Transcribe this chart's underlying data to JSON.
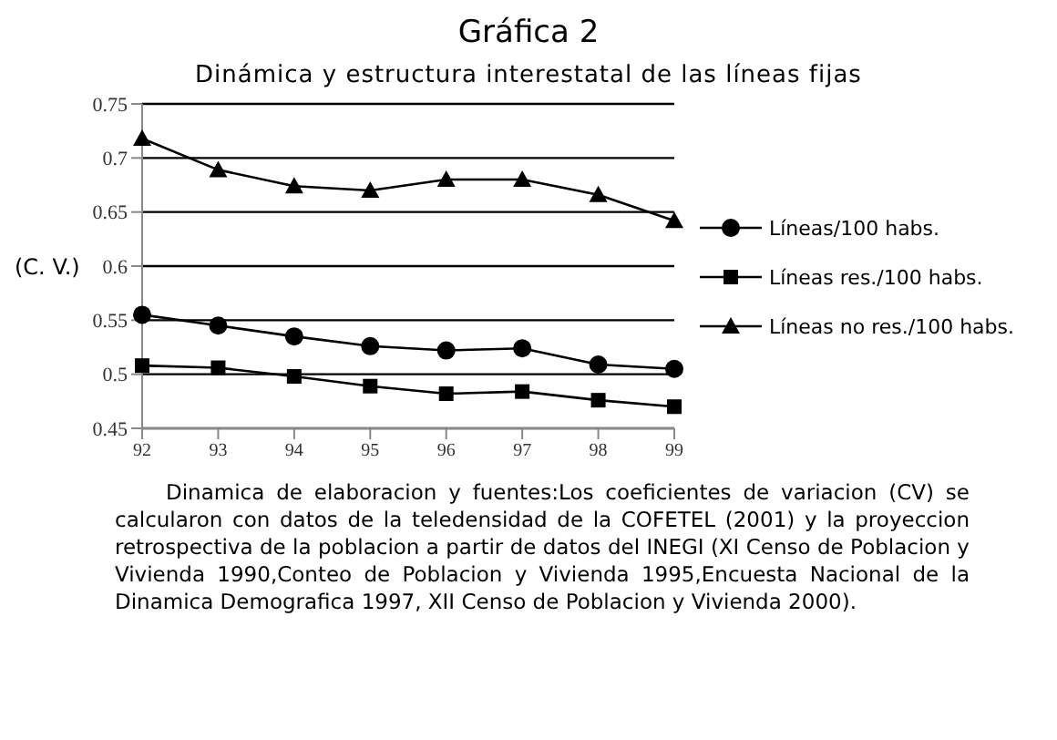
{
  "chart_data": {
    "type": "line",
    "title": "Gráfica 2",
    "subtitle": "Dinámica y estructura interestatal de las líneas fijas",
    "ylabel": "(C. V.)",
    "categories": [
      "92",
      "93",
      "94",
      "95",
      "96",
      "97",
      "98",
      "99"
    ],
    "series": [
      {
        "name": "Líneas/100 habs.",
        "color": "#000000",
        "marker": "circle",
        "values": [
          0.555,
          0.545,
          0.535,
          0.526,
          0.522,
          0.524,
          0.509,
          0.505
        ]
      },
      {
        "name": "Líneas res./100 habs.",
        "color": "#000000",
        "marker": "square",
        "values": [
          0.508,
          0.506,
          0.498,
          0.489,
          0.482,
          0.484,
          0.476,
          0.47
        ]
      },
      {
        "name": "Líneas no res./100 habs.",
        "color": "#000000",
        "marker": "triangle",
        "values": [
          0.718,
          0.689,
          0.674,
          0.67,
          0.68,
          0.68,
          0.666,
          0.642
        ]
      }
    ],
    "ylim": [
      0.45,
      0.75
    ],
    "yticks": [
      0.45,
      0.5,
      0.55,
      0.6,
      0.65,
      0.7,
      0.75
    ],
    "grid": "y",
    "legend": "right",
    "line_style": "solid",
    "annotations": [
      "Dinamica de elaboracion y fuentes:Los coeficientes de variacion (CV) se calcularon con datos de la teledensidad de la COFETEL (2001) y la proyeccion retrospectiva de la poblacion a partir de datos del INEGI (XI Censo de Poblacion y Vivienda 1990,Conteo de Poblacion y Vivienda 1995,Encuesta Nacional de la Dinamica Demografica 1997, XII Censo de Poblacion y Vivienda 2000)."
    ]
  }
}
